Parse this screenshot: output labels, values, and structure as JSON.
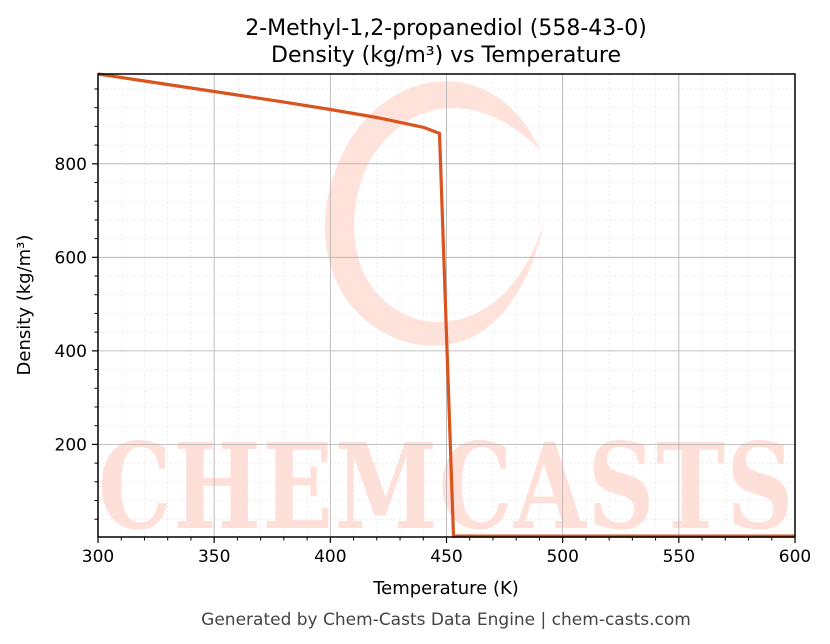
{
  "chart_data": {
    "type": "line",
    "title": [
      "2-Methyl-1,2-propanediol (558-43-0)",
      "Density (kg/m³) vs Temperature"
    ],
    "xlabel": "Temperature (K)",
    "ylabel": "Density (kg/m³)",
    "xlim": [
      300,
      600
    ],
    "ylim": [
      2,
      992
    ],
    "xticks": [
      300,
      350,
      400,
      450,
      500,
      550,
      600
    ],
    "yticks": [
      200,
      400,
      600,
      800
    ],
    "grid": true,
    "series": [
      {
        "color": "#d9541e",
        "x": [
          300,
          320,
          340,
          360,
          380,
          400,
          420,
          440,
          447,
          453,
          460,
          500,
          550,
          600
        ],
        "y": [
          992,
          977,
          962,
          947,
          932,
          916,
          899,
          878,
          865,
          4,
          4,
          4,
          4,
          4
        ]
      }
    ]
  },
  "watermark": {
    "text": "CHEMCASTS",
    "color": "#ffe0d8"
  },
  "footer": "Generated by Chem-Casts Data Engine | chem-casts.com"
}
